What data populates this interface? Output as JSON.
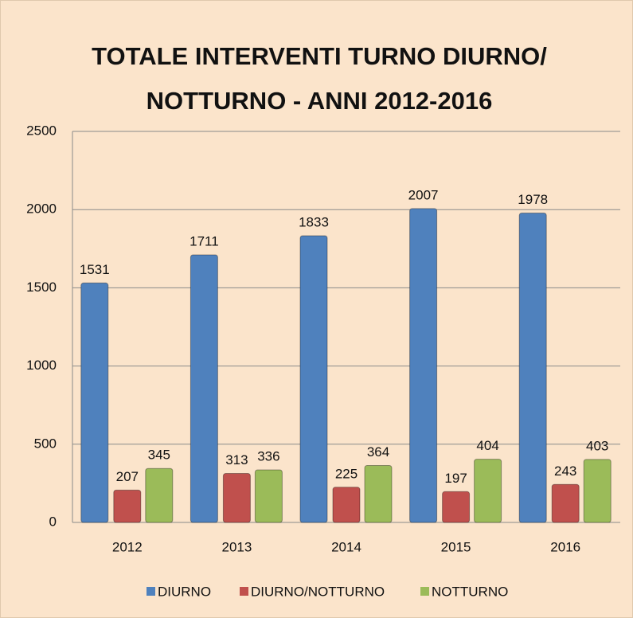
{
  "chart_data": {
    "type": "bar",
    "title": "TOTALE INTERVENTI TURNO DIURNO/ NOTTURNO - ANNI 2012-2016",
    "categories": [
      "2012",
      "2013",
      "2014",
      "2015",
      "2016"
    ],
    "series": [
      {
        "name": "DIURNO",
        "color": "#4f81bd",
        "values": [
          1531,
          1711,
          1833,
          2007,
          1978
        ]
      },
      {
        "name": "DIURNO/NOTTURNO",
        "color": "#c0504d",
        "values": [
          207,
          313,
          225,
          197,
          243
        ]
      },
      {
        "name": "NOTTURNO",
        "color": "#9bbb59",
        "values": [
          345,
          336,
          364,
          404,
          403
        ]
      }
    ],
    "ylim": [
      0,
      2500
    ],
    "yticks": [
      0,
      500,
      1000,
      1500,
      2000,
      2500
    ],
    "grid": true,
    "legend": "bottom"
  }
}
